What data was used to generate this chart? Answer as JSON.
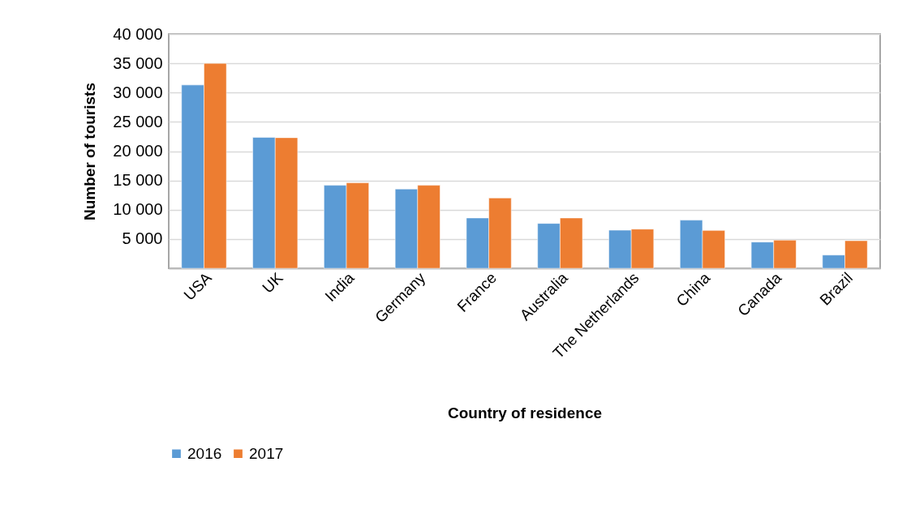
{
  "chart_data": {
    "type": "bar",
    "xlabel": "Country of residence",
    "ylabel": "Number of tourists",
    "categories": [
      "USA",
      "UK",
      "India",
      "Germany",
      "France",
      "Australia",
      "The Netherlands",
      "China",
      "Canada",
      "Brazil"
    ],
    "series": [
      {
        "name": "2016",
        "color": "#5b9bd5",
        "values": [
          31300,
          22350,
          14170,
          13530,
          8590,
          7660,
          6510,
          8220,
          4480,
          2260
        ]
      },
      {
        "name": "2017",
        "color": "#ed7d31",
        "values": [
          35000,
          22300,
          14590,
          14170,
          12000,
          8590,
          6690,
          6460,
          4800,
          4710
        ]
      }
    ],
    "ylim": [
      0,
      40000
    ],
    "yticks": [
      {
        "value": 5000,
        "label": "5 000"
      },
      {
        "value": 10000,
        "label": "10 000"
      },
      {
        "value": 15000,
        "label": "15 000"
      },
      {
        "value": 20000,
        "label": "20 000"
      },
      {
        "value": 25000,
        "label": "25 000"
      },
      {
        "value": 30000,
        "label": "30 000"
      },
      {
        "value": 35000,
        "label": "35 000"
      },
      {
        "value": 40000,
        "label": "40 000"
      }
    ],
    "grid": "y",
    "legend": "bottom"
  }
}
